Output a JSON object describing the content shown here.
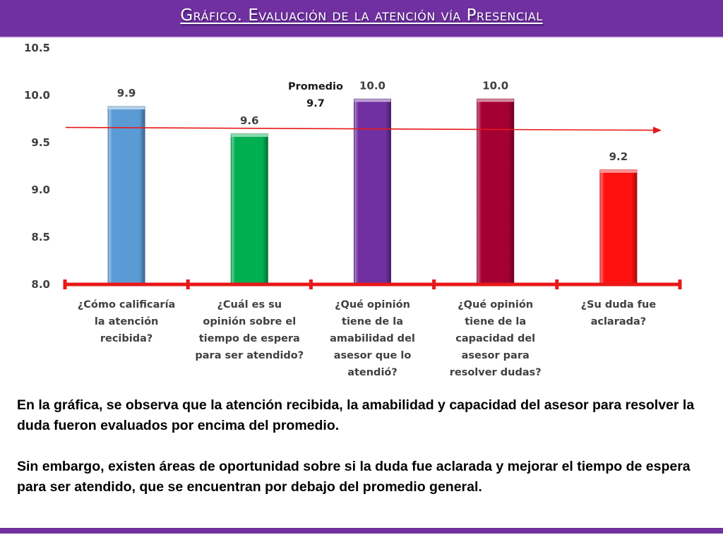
{
  "header": {
    "title": "Gráfico. Evaluación de la atención vía Presencial"
  },
  "colors": {
    "header_bg": "#7030a0",
    "average_line": "#e81818",
    "axis_line": "#e81818"
  },
  "chart_data": {
    "type": "bar",
    "title": "",
    "xlabel": "",
    "ylabel": "",
    "ylim": [
      8.0,
      10.5
    ],
    "yticks": [
      "10.5",
      "10.0",
      "9.5",
      "9.0",
      "8.5",
      "8.0"
    ],
    "categories": [
      "¿Cómo calificaría la atención recibida?",
      "¿Cuál es su opinión sobre el tiempo de espera para ser atendido?",
      "¿Qué opinión tiene de la amabilidad del asesor que lo atendió?",
      "¿Qué opinión tiene de la capacidad del asesor para resolver dudas?",
      "¿Su duda fue aclarada?"
    ],
    "category_lines": [
      [
        "¿Cómo calificaría",
        "la atención",
        "recibida?"
      ],
      [
        "¿Cuál es su",
        "opinión sobre el",
        "tiempo de espera",
        "para ser atendido?"
      ],
      [
        "¿Qué opinión",
        "tiene de la",
        "amabilidad del",
        "asesor que lo",
        "atendió?"
      ],
      [
        "¿Qué opinión",
        "tiene de la",
        "capacidad del",
        "asesor para",
        "resolver dudas?"
      ],
      [
        "¿Su duda fue",
        "aclarada?"
      ]
    ],
    "values": [
      9.88,
      9.59,
      9.96,
      9.96,
      9.21
    ],
    "data_labels": [
      "9.9",
      "9.6",
      "10.0",
      "10.0",
      "9.2"
    ],
    "bar_colors": [
      "#5b9bd5",
      "#00b050",
      "#7030a0",
      "#a50034",
      "#ff1010"
    ],
    "average": {
      "label": "Promedio",
      "value_label": "9.7",
      "start_value": 9.66,
      "end_value": 9.63
    },
    "grid": false,
    "legend": "none"
  },
  "body": {
    "paragraph_1": "En la gráfica, se observa que la atención recibida, la amabilidad y capacidad del asesor para resolver la duda fueron evaluados por encima del promedio.",
    "paragraph_2": "Sin embargo, existen áreas de oportunidad sobre si la duda fue aclarada y mejorar el tiempo de espera para ser atendido, que se encuentran por debajo del promedio general."
  }
}
